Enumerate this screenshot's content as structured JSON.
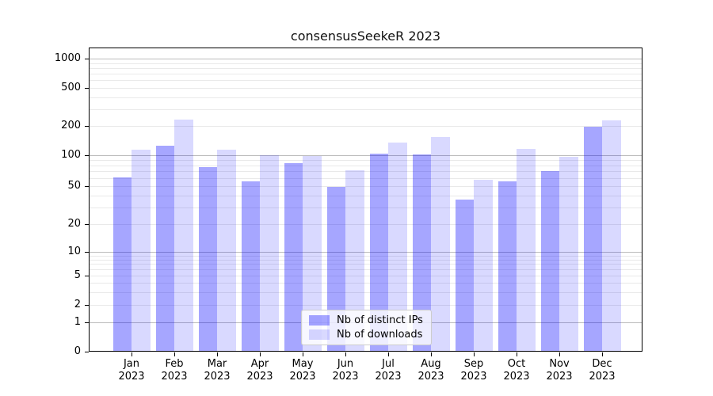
{
  "title": "consensusSeekeR 2023",
  "colors": {
    "bar_distinct_ips": "rgba(0,0,255,0.35)",
    "bar_downloads": "rgba(0,0,255,0.15)",
    "grid_major": "#bbbbbb",
    "grid_minor": "#e9e9e9",
    "axis": "#000000",
    "legend_border": "#cccccc"
  },
  "x_axis": {
    "month_labels": [
      "Jan",
      "Feb",
      "Mar",
      "Apr",
      "May",
      "Jun",
      "Jul",
      "Aug",
      "Sep",
      "Oct",
      "Nov",
      "Dec"
    ],
    "year_label": "2023"
  },
  "y_axis": {
    "tick_labels": [
      "0",
      "1",
      "2",
      "5",
      "10",
      "20",
      "50",
      "100",
      "200",
      "500",
      "1000"
    ]
  },
  "legend": {
    "items": [
      {
        "label": "Nb of distinct IPs",
        "color": "rgba(0,0,255,0.35)"
      },
      {
        "label": "Nb of downloads",
        "color": "rgba(0,0,255,0.15)"
      }
    ]
  },
  "chart_data": {
    "type": "bar",
    "title": "consensusSeekeR 2023",
    "categories": [
      "Jan 2023",
      "Feb 2023",
      "Mar 2023",
      "Apr 2023",
      "May 2023",
      "Jun 2023",
      "Jul 2023",
      "Aug 2023",
      "Sep 2023",
      "Oct 2023",
      "Nov 2023",
      "Dec 2023"
    ],
    "series": [
      {
        "name": "Nb of distinct IPs",
        "color": "rgba(0,0,255,0.35)",
        "values": [
          61,
          125,
          77,
          56,
          83,
          49,
          103,
          101,
          36,
          56,
          70,
          197
        ]
      },
      {
        "name": "Nb of downloads",
        "color": "rgba(0,0,255,0.15)",
        "values": [
          113,
          232,
          114,
          100,
          99,
          71,
          135,
          153,
          58,
          117,
          97,
          230
        ]
      }
    ],
    "xlabel": "",
    "ylabel": "",
    "yscale": "symlog",
    "yticks": [
      0,
      1,
      2,
      5,
      10,
      20,
      50,
      100,
      200,
      500,
      1000
    ],
    "ylim": [
      0,
      1300
    ],
    "grid": true,
    "legend_position": "lower center"
  }
}
